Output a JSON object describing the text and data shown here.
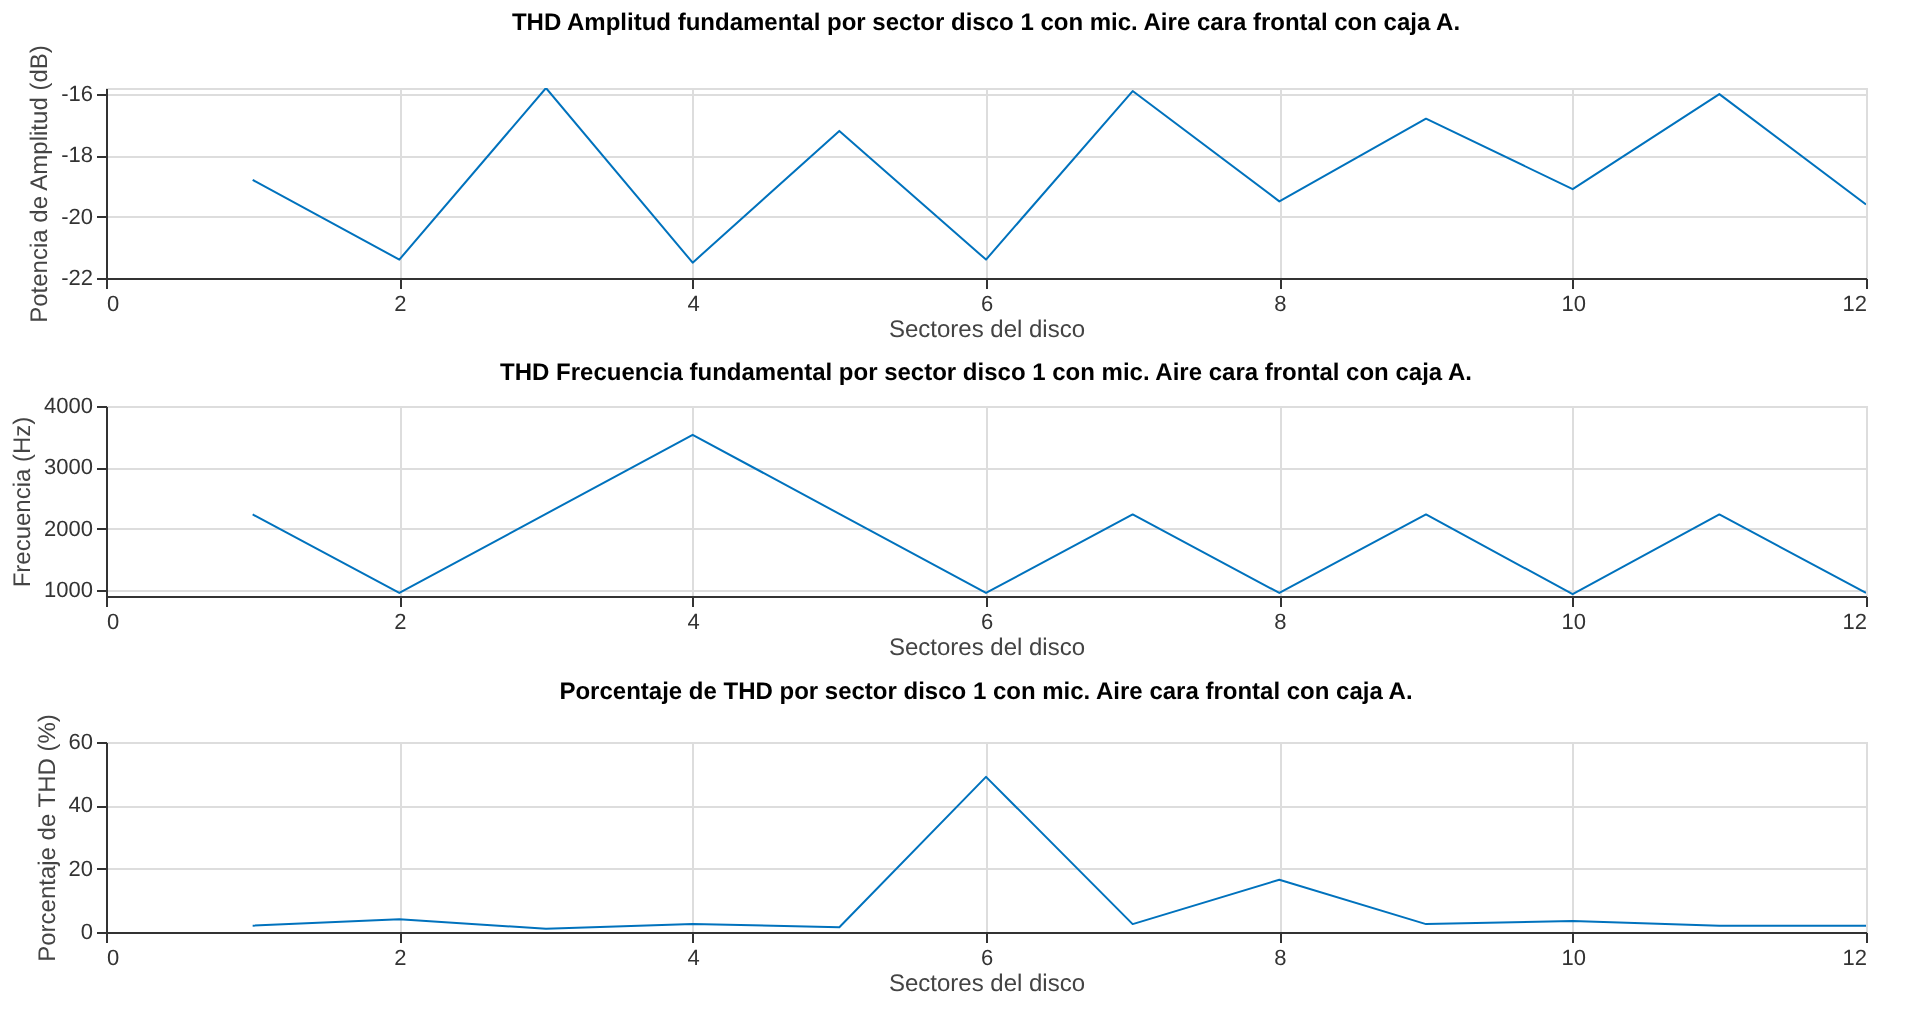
{
  "chart_data": [
    {
      "type": "line",
      "title": "THD Amplitud fundamental por sector disco 1 con mic. Aire cara frontal con caja A.",
      "xlabel": "Sectores del disco",
      "ylabel": "Potencia de Amplitud (dB)",
      "x": [
        1,
        2,
        3,
        4,
        5,
        6,
        7,
        8,
        9,
        10,
        11,
        12
      ],
      "series": [
        {
          "color": "#0072bd",
          "values": [
            -18.8,
            -21.4,
            -15.8,
            -21.5,
            -17.2,
            -21.4,
            -15.9,
            -19.5,
            -16.8,
            -19.1,
            -16.0,
            -19.6
          ]
        }
      ],
      "xlim": [
        0,
        12
      ],
      "xticks": [
        0,
        2,
        4,
        6,
        8,
        10,
        12
      ],
      "ylim": [
        -22,
        -15.8
      ],
      "yticks": [
        -22,
        -20,
        -18,
        -16
      ],
      "grid": true
    },
    {
      "type": "line",
      "title": "THD Frecuencia fundamental por sector disco 1 con mic. Aire cara frontal con caja A.",
      "xlabel": "Sectores del disco",
      "ylabel": "Frecuencia (Hz)",
      "x": [
        1,
        2,
        3,
        4,
        5,
        6,
        7,
        8,
        9,
        10,
        11,
        12
      ],
      "series": [
        {
          "color": "#0072bd",
          "values": [
            2230,
            950,
            2240,
            3530,
            2240,
            950,
            2230,
            950,
            2230,
            930,
            2230,
            950
          ]
        }
      ],
      "xlim": [
        0,
        12
      ],
      "xticks": [
        0,
        2,
        4,
        6,
        8,
        10,
        12
      ],
      "ylim": [
        900,
        4000
      ],
      "yticks": [
        1000,
        2000,
        3000,
        4000
      ],
      "grid": true
    },
    {
      "type": "line",
      "title": "Porcentaje de THD por sector disco 1 con mic. Aire cara frontal con caja A.",
      "xlabel": "Sectores del disco",
      "ylabel": "Porcentaje de THD (%)",
      "x": [
        1,
        2,
        3,
        4,
        5,
        6,
        7,
        8,
        9,
        10,
        11,
        12
      ],
      "series": [
        {
          "color": "#0072bd",
          "values": [
            2,
            4,
            1,
            2.5,
            1.5,
            49,
            2.5,
            16.5,
            2.5,
            3.5,
            2,
            2
          ]
        }
      ],
      "xlim": [
        0,
        12
      ],
      "xticks": [
        0,
        2,
        4,
        6,
        8,
        10,
        12
      ],
      "ylim": [
        0,
        60
      ],
      "yticks": [
        0,
        20,
        40,
        60
      ],
      "grid": true
    }
  ]
}
